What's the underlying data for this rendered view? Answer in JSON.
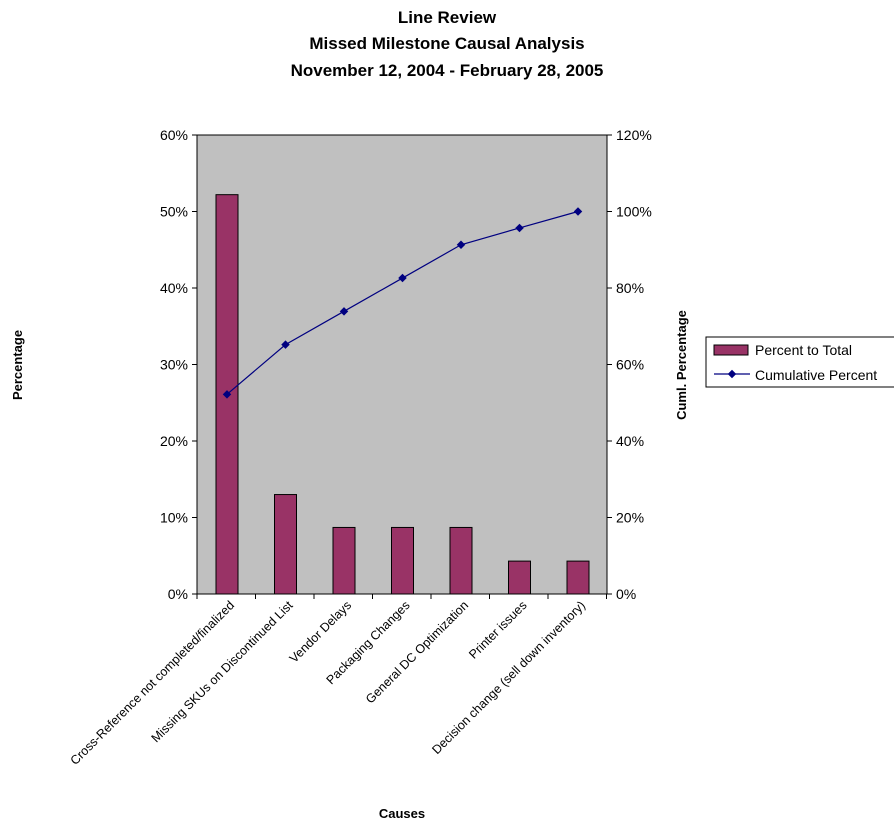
{
  "chart_data": {
    "type": "bar",
    "title": [
      "Line Review",
      "Missed Milestone Causal Analysis",
      "November 12, 2004 - February 28, 2005"
    ],
    "xlabel": "Causes",
    "ylabel": "Percentage",
    "y2label": "Cuml. Percentage",
    "ylim": [
      0,
      0.6
    ],
    "y2lim": [
      0,
      1.2
    ],
    "yticks": [
      "0%",
      "10%",
      "20%",
      "30%",
      "40%",
      "50%",
      "60%"
    ],
    "y2ticks": [
      "0%",
      "20%",
      "40%",
      "60%",
      "80%",
      "100%",
      "120%"
    ],
    "categories": [
      "Cross-Reference not completed/finalized",
      "Missing SKUs on Discontinued List",
      "Vendor Delays",
      "Packaging Changes",
      "General DC Optimization",
      "Printer issues",
      "Decision change (sell down inventory)"
    ],
    "series": [
      {
        "name": "Percent to Total",
        "type": "bar",
        "axis": "left",
        "values": [
          0.522,
          0.13,
          0.087,
          0.087,
          0.087,
          0.043,
          0.043
        ]
      },
      {
        "name": "Cumulative Percent",
        "type": "line",
        "axis": "right",
        "values": [
          0.522,
          0.652,
          0.739,
          0.826,
          0.913,
          0.957,
          1.0
        ]
      }
    ],
    "legend": "right",
    "grid": false,
    "colors": {
      "plot_background": "#c0c0c0",
      "bar_fill": "#993366",
      "line": "#000080"
    }
  }
}
